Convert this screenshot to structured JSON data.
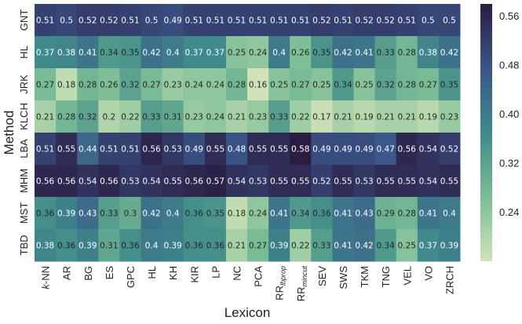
{
  "chart_data": {
    "type": "heatmap",
    "xlabel": "Lexicon",
    "ylabel": "Method",
    "x_categories": [
      "k-NN",
      "AR",
      "BG",
      "ES",
      "GPC",
      "HL",
      "KH",
      "KIR",
      "LP",
      "NC",
      "PCA",
      "RRlbprop",
      "RRmincut",
      "SEV",
      "SWS",
      "TKM",
      "TNG",
      "VEL",
      "VO",
      "ZRCH"
    ],
    "x_tick_labels": [
      {
        "main": "k",
        "rest": "-NN",
        "italic_main": true,
        "sub": ""
      },
      {
        "main": "AR",
        "rest": "",
        "sub": ""
      },
      {
        "main": "BG",
        "rest": "",
        "sub": ""
      },
      {
        "main": "ES",
        "rest": "",
        "sub": ""
      },
      {
        "main": "GPC",
        "rest": "",
        "sub": ""
      },
      {
        "main": "HL",
        "rest": "",
        "sub": ""
      },
      {
        "main": "KH",
        "rest": "",
        "sub": ""
      },
      {
        "main": "KIR",
        "rest": "",
        "sub": ""
      },
      {
        "main": "LP",
        "rest": "",
        "sub": ""
      },
      {
        "main": "NC",
        "rest": "",
        "sub": ""
      },
      {
        "main": "PCA",
        "rest": "",
        "sub": ""
      },
      {
        "main": "RR",
        "rest": "",
        "sub": "lbprop"
      },
      {
        "main": "RR",
        "rest": "",
        "sub": "mincut"
      },
      {
        "main": "SEV",
        "rest": "",
        "sub": ""
      },
      {
        "main": "SWS",
        "rest": "",
        "sub": ""
      },
      {
        "main": "TKM",
        "rest": "",
        "sub": ""
      },
      {
        "main": "TNG",
        "rest": "",
        "sub": ""
      },
      {
        "main": "VEL",
        "rest": "",
        "sub": ""
      },
      {
        "main": "VO",
        "rest": "",
        "sub": ""
      },
      {
        "main": "ZRCH",
        "rest": "",
        "sub": ""
      }
    ],
    "y_categories": [
      "GNT",
      "HL",
      "JRK",
      "KLCH",
      "LBA",
      "MHM",
      "MST",
      "TBD"
    ],
    "values": [
      [
        0.51,
        0.5,
        0.52,
        0.52,
        0.51,
        0.5,
        0.49,
        0.51,
        0.51,
        0.51,
        0.51,
        0.51,
        0.51,
        0.52,
        0.51,
        0.52,
        0.52,
        0.51,
        0.5,
        0.5
      ],
      [
        0.37,
        0.38,
        0.41,
        0.34,
        0.35,
        0.42,
        0.4,
        0.37,
        0.37,
        0.25,
        0.24,
        0.4,
        0.26,
        0.35,
        0.42,
        0.41,
        0.33,
        0.28,
        0.38,
        0.42
      ],
      [
        0.27,
        0.18,
        0.28,
        0.26,
        0.32,
        0.27,
        0.23,
        0.24,
        0.24,
        0.28,
        0.16,
        0.25,
        0.27,
        0.25,
        0.34,
        0.25,
        0.32,
        0.28,
        0.27,
        0.35
      ],
      [
        0.21,
        0.28,
        0.32,
        0.2,
        0.22,
        0.33,
        0.31,
        0.23,
        0.24,
        0.21,
        0.23,
        0.33,
        0.22,
        0.17,
        0.21,
        0.19,
        0.21,
        0.21,
        0.19,
        0.23
      ],
      [
        0.51,
        0.55,
        0.44,
        0.51,
        0.51,
        0.56,
        0.53,
        0.49,
        0.55,
        0.48,
        0.55,
        0.55,
        0.58,
        0.49,
        0.49,
        0.49,
        0.47,
        0.56,
        0.54,
        0.52
      ],
      [
        0.56,
        0.56,
        0.54,
        0.56,
        0.53,
        0.54,
        0.55,
        0.56,
        0.57,
        0.54,
        0.53,
        0.55,
        0.55,
        0.52,
        0.55,
        0.53,
        0.55,
        0.55,
        0.54,
        0.55
      ],
      [
        0.36,
        0.39,
        0.43,
        0.33,
        0.3,
        0.42,
        0.4,
        0.36,
        0.35,
        0.18,
        0.24,
        0.41,
        0.34,
        0.36,
        0.41,
        0.43,
        0.29,
        0.28,
        0.41,
        0.4
      ],
      [
        0.38,
        0.36,
        0.39,
        0.31,
        0.36,
        0.4,
        0.39,
        0.36,
        0.36,
        0.21,
        0.27,
        0.39,
        0.22,
        0.33,
        0.41,
        0.42,
        0.34,
        0.25,
        0.37,
        0.39
      ]
    ],
    "colorbar": {
      "range": [
        0.16,
        0.58
      ],
      "ticks": [
        0.24,
        0.32,
        0.4,
        0.48,
        0.56
      ],
      "tick_labels": [
        "0.24",
        "0.32",
        "0.40",
        "0.48",
        "0.56"
      ],
      "colormap_stops": [
        "#d0e3b8",
        "#7bbd95",
        "#3f8a8a",
        "#3a5589",
        "#2b1d42"
      ]
    },
    "grid": false,
    "legend": "colorbar-right"
  }
}
